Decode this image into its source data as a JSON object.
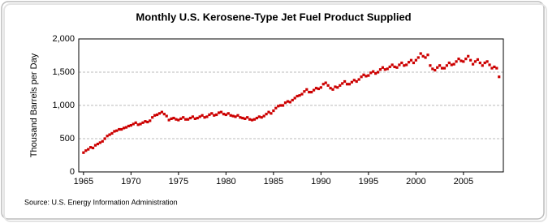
{
  "chart_data": {
    "type": "scatter",
    "title": "Monthly U.S. Kerosene-Type Jet Fuel Product Supplied",
    "y_label": "Thousand Barrels per Day",
    "source": "Source: U.S. Energy Information Administration",
    "color": "#cc0000",
    "grid": true,
    "xlim": [
      1964.5,
      2009.2
    ],
    "xticks": [
      1965,
      1970,
      1975,
      1980,
      1985,
      1990,
      1995,
      2000,
      2005
    ],
    "ylim": [
      0,
      2000
    ],
    "yticks": [
      0,
      500,
      {
        "value": 1000,
        "label": "1,000"
      },
      {
        "value": 1500,
        "label": "1,500"
      },
      {
        "value": 2000,
        "label": "2,000"
      }
    ],
    "x": [
      1965,
      1965.25,
      1965.5,
      1965.75,
      1966,
      1966.25,
      1966.5,
      1966.75,
      1967,
      1967.25,
      1967.5,
      1967.75,
      1968,
      1968.25,
      1968.5,
      1968.75,
      1969,
      1969.25,
      1969.5,
      1969.75,
      1970,
      1970.25,
      1970.5,
      1970.75,
      1971,
      1971.25,
      1971.5,
      1971.75,
      1972,
      1972.25,
      1972.5,
      1972.75,
      1973,
      1973.25,
      1973.5,
      1973.75,
      1974,
      1974.25,
      1974.5,
      1974.75,
      1975,
      1975.25,
      1975.5,
      1975.75,
      1976,
      1976.25,
      1976.5,
      1976.75,
      1977,
      1977.25,
      1977.5,
      1977.75,
      1978,
      1978.25,
      1978.5,
      1978.75,
      1979,
      1979.25,
      1979.5,
      1979.75,
      1980,
      1980.25,
      1980.5,
      1980.75,
      1981,
      1981.25,
      1981.5,
      1981.75,
      1982,
      1982.25,
      1982.5,
      1982.75,
      1983,
      1983.25,
      1983.5,
      1983.75,
      1984,
      1984.25,
      1984.5,
      1984.75,
      1985,
      1985.25,
      1985.5,
      1985.75,
      1986,
      1986.25,
      1986.5,
      1986.75,
      1987,
      1987.25,
      1987.5,
      1987.75,
      1988,
      1988.25,
      1988.5,
      1988.75,
      1989,
      1989.25,
      1989.5,
      1989.75,
      1990,
      1990.25,
      1990.5,
      1990.75,
      1991,
      1991.25,
      1991.5,
      1991.75,
      1992,
      1992.25,
      1992.5,
      1992.75,
      1993,
      1993.25,
      1993.5,
      1993.75,
      1994,
      1994.25,
      1994.5,
      1994.75,
      1995,
      1995.25,
      1995.5,
      1995.75,
      1996,
      1996.25,
      1996.5,
      1996.75,
      1997,
      1997.25,
      1997.5,
      1997.75,
      1998,
      1998.25,
      1998.5,
      1998.75,
      1999,
      1999.25,
      1999.5,
      1999.75,
      2000,
      2000.25,
      2000.5,
      2000.75,
      2001,
      2001.25,
      2001.5,
      2001.75,
      2002,
      2002.25,
      2002.5,
      2002.75,
      2003,
      2003.25,
      2003.5,
      2003.75,
      2004,
      2004.25,
      2004.5,
      2004.75,
      2005,
      2005.25,
      2005.5,
      2005.75,
      2006,
      2006.25,
      2006.5,
      2006.75,
      2007,
      2007.25,
      2007.5,
      2007.75,
      2008,
      2008.25,
      2008.5,
      2008.75
    ],
    "values": [
      290,
      320,
      340,
      370,
      360,
      400,
      420,
      440,
      460,
      500,
      540,
      560,
      580,
      610,
      620,
      640,
      640,
      660,
      670,
      690,
      700,
      720,
      740,
      710,
      720,
      740,
      760,
      750,
      770,
      820,
      850,
      860,
      880,
      900,
      870,
      840,
      780,
      800,
      810,
      790,
      780,
      800,
      820,
      790,
      790,
      810,
      830,
      800,
      810,
      830,
      850,
      820,
      830,
      860,
      880,
      850,
      860,
      890,
      900,
      870,
      860,
      880,
      850,
      840,
      830,
      850,
      820,
      810,
      800,
      820,
      790,
      780,
      790,
      810,
      830,
      820,
      840,
      870,
      900,
      880,
      920,
      960,
      990,
      1000,
      1000,
      1040,
      1060,
      1050,
      1080,
      1110,
      1140,
      1150,
      1170,
      1210,
      1240,
      1200,
      1200,
      1230,
      1260,
      1250,
      1270,
      1320,
      1340,
      1300,
      1260,
      1240,
      1280,
      1270,
      1300,
      1330,
      1360,
      1320,
      1320,
      1350,
      1380,
      1360,
      1390,
      1430,
      1460,
      1440,
      1450,
      1490,
      1510,
      1480,
      1500,
      1540,
      1570,
      1540,
      1550,
      1580,
      1610,
      1580,
      1570,
      1610,
      1640,
      1600,
      1610,
      1650,
      1680,
      1640,
      1680,
      1720,
      1780,
      1740,
      1720,
      1760,
      1600,
      1550,
      1530,
      1570,
      1600,
      1560,
      1560,
      1600,
      1640,
      1610,
      1620,
      1660,
      1700,
      1670,
      1660,
      1700,
      1740,
      1680,
      1620,
      1660,
      1690,
      1640,
      1600,
      1640,
      1660,
      1610,
      1560,
      1580,
      1560,
      1430
    ]
  }
}
